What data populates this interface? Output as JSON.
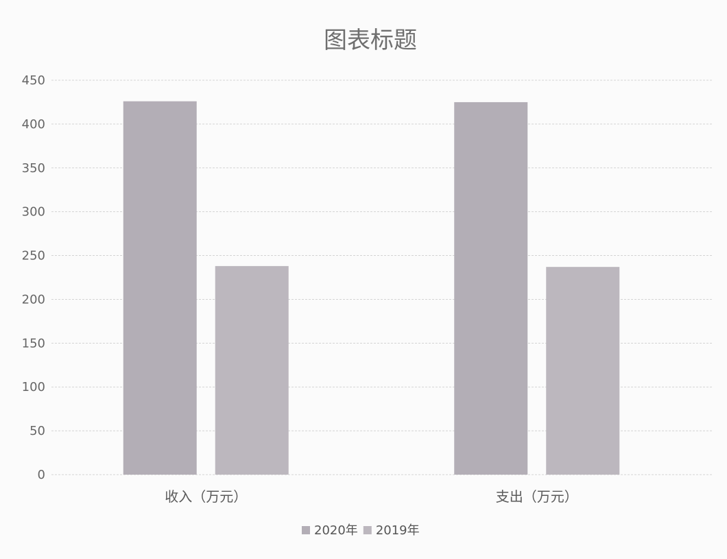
{
  "chart_data": {
    "type": "bar",
    "title": "图表标题",
    "categories": [
      "收入（万元）",
      "支出（万元）"
    ],
    "series": [
      {
        "name": "2020年",
        "values": [
          426,
          425
        ],
        "color": "#b3aeb6"
      },
      {
        "name": "2019年",
        "values": [
          238,
          237
        ],
        "color": "#bcb7be"
      }
    ],
    "ylim": [
      0,
      450
    ],
    "yticks": [
      0,
      50,
      100,
      150,
      200,
      250,
      300,
      350,
      400,
      450
    ],
    "grid": true,
    "legend": "bottom"
  }
}
